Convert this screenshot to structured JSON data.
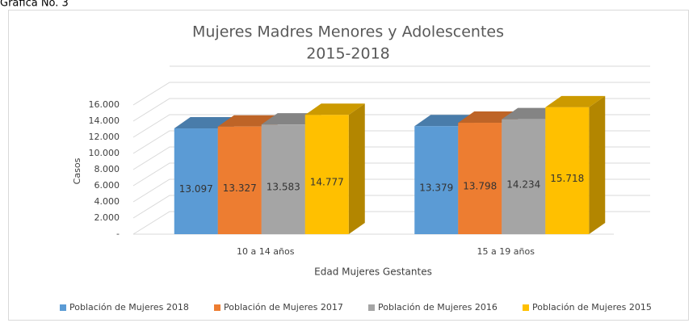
{
  "caption": "Gráfica No. 3",
  "chart_data": {
    "type": "bar3d",
    "title": "Mujeres Madres Menores y Adolescentes",
    "subtitle": "2015-2018",
    "x_label": "Edad Mujeres Gestantes",
    "y_label": "Casos",
    "categories": [
      "10 a 14 años",
      "15 a 19 años"
    ],
    "series": [
      {
        "name": "Población de Mujeres 2018",
        "color": "#5b9bd5",
        "values": [
          13097,
          13379
        ],
        "value_labels": [
          "13.097",
          "13.379"
        ]
      },
      {
        "name": "Población de Mujeres 2017",
        "color": "#ed7d31",
        "values": [
          13327,
          13798
        ],
        "value_labels": [
          "13.327",
          "13.798"
        ]
      },
      {
        "name": "Población de Mujeres 2016",
        "color": "#a5a5a5",
        "values": [
          13583,
          14234
        ],
        "value_labels": [
          "13.583",
          "14.234"
        ]
      },
      {
        "name": "Población de Mujeres 2015",
        "color": "#ffc000",
        "values": [
          14777,
          15718
        ],
        "value_labels": [
          "14.777",
          "15.718"
        ]
      }
    ],
    "ylim": [
      0,
      16000
    ],
    "yticks": [
      {
        "value": 0,
        "label": "-"
      },
      {
        "value": 2000,
        "label": "2.000"
      },
      {
        "value": 4000,
        "label": "4.000"
      },
      {
        "value": 6000,
        "label": "6.000"
      },
      {
        "value": 8000,
        "label": "8.000"
      },
      {
        "value": 10000,
        "label": "10.000"
      },
      {
        "value": 12000,
        "label": "12.000"
      },
      {
        "value": 14000,
        "label": "14.000"
      },
      {
        "value": 16000,
        "label": "16.000"
      }
    ],
    "grid": true,
    "legend": "bottom"
  }
}
